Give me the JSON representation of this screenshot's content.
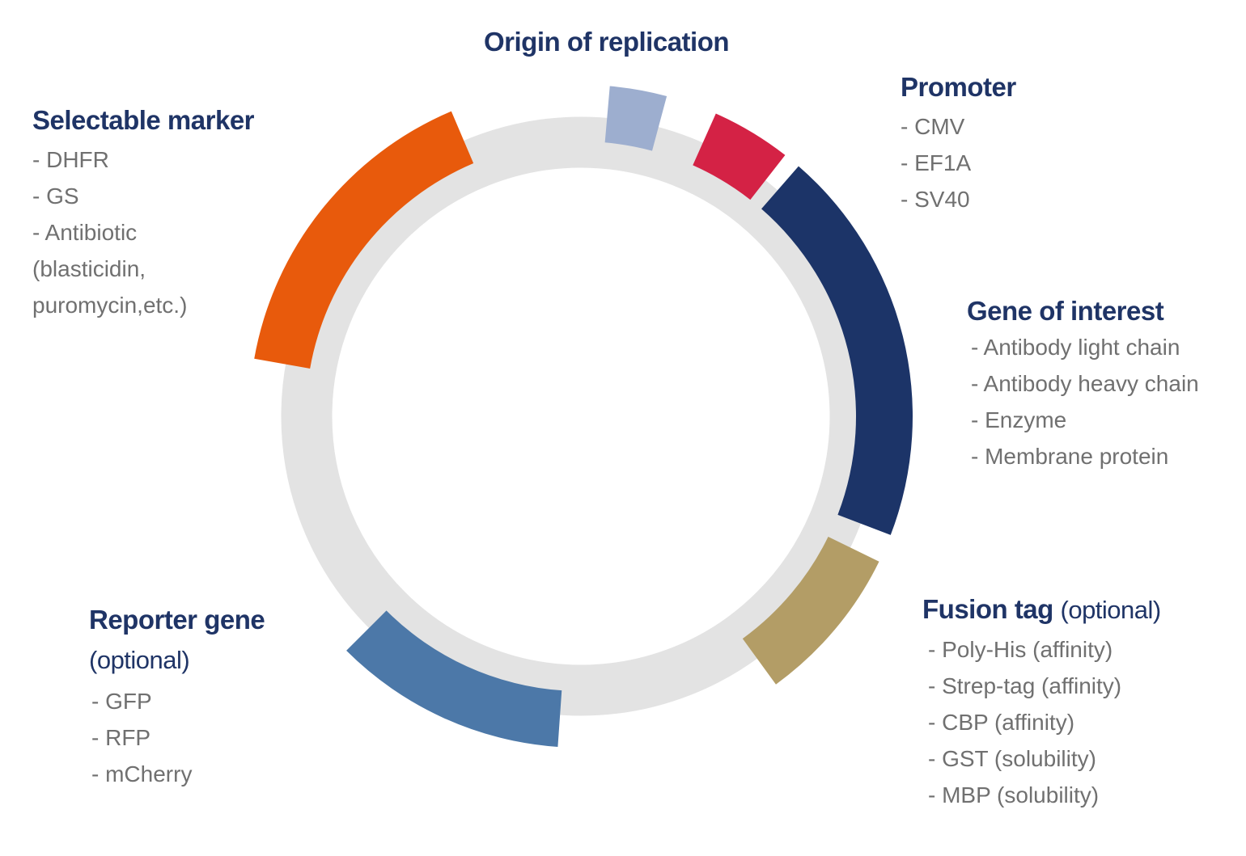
{
  "colors": {
    "ring": "#e3e3e3",
    "origin": "#9daecf",
    "promoter": "#d42245",
    "gene": "#1c3468",
    "fusion": "#b39d66",
    "reporter": "#4c78a8",
    "marker": "#e85a0c",
    "title": "#1f3466",
    "text": "#707070"
  },
  "segments": [
    {
      "name": "origin",
      "from_deg": 5,
      "to_deg": 15
    },
    {
      "name": "promoter",
      "from_deg": 24,
      "to_deg": 38
    },
    {
      "name": "gene",
      "from_deg": 41,
      "to_deg": 111
    },
    {
      "name": "fusion",
      "from_deg": 116,
      "to_deg": 144
    },
    {
      "name": "reporter",
      "from_deg": 184,
      "to_deg": 225
    },
    {
      "name": "marker",
      "from_deg": 280,
      "to_deg": 337
    }
  ],
  "origin": {
    "title": "Origin of replication"
  },
  "promoter": {
    "title": "Promoter",
    "items": [
      "- CMV",
      "- EF1A",
      "- SV40"
    ]
  },
  "marker": {
    "title": "Selectable marker",
    "items": [
      "- DHFR",
      "- GS",
      "- Antibiotic",
      "(blasticidin,",
      "puromycin,etc.)"
    ]
  },
  "gene": {
    "title": "Gene of interest",
    "items": [
      "- Antibody light chain",
      "- Antibody heavy chain",
      "- Enzyme",
      "- Membrane protein"
    ]
  },
  "fusion": {
    "title": "Fusion tag",
    "optional": "(optional)",
    "items": [
      "- Poly-His (affinity)",
      "- Strep-tag (affinity)",
      "- CBP (affinity)",
      "- GST (solubility)",
      "- MBP (solubility)"
    ]
  },
  "reporter": {
    "title": "Reporter gene",
    "optional": "(optional)",
    "items": [
      "- GFP",
      "- RFP",
      "- mCherry"
    ]
  }
}
